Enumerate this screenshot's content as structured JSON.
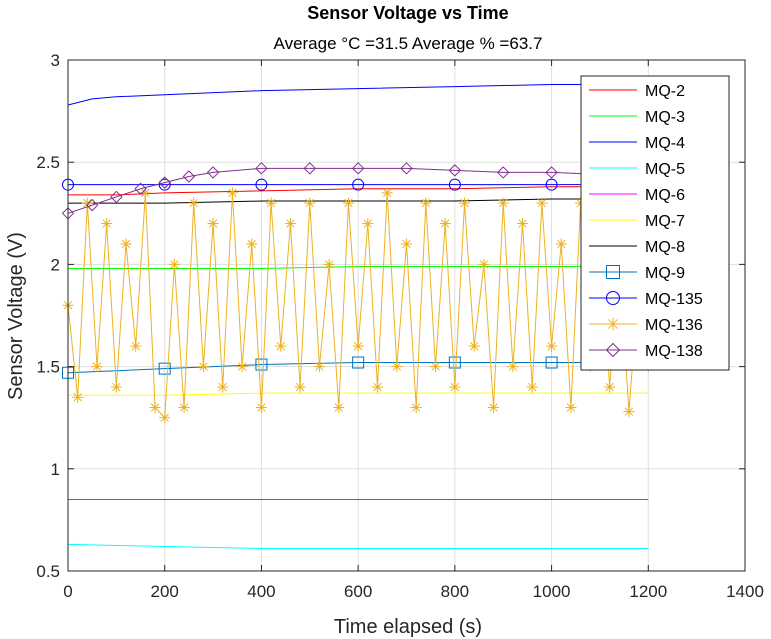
{
  "chart_data": {
    "type": "line",
    "title": "Sensor Voltage vs Time",
    "subtitle": "Average °C =31.5    Average % =63.7",
    "xlabel": "Time elapsed (s)",
    "ylabel": "Sensor Voltage (V)",
    "xlim": [
      0,
      1400
    ],
    "ylim": [
      0.5,
      3
    ],
    "xticks": [
      0,
      200,
      400,
      600,
      800,
      1000,
      1200,
      1400
    ],
    "xtick_labels": [
      "0",
      "200",
      "400",
      "600",
      "800",
      "1000",
      "1200",
      "1400"
    ],
    "yticks": [
      0.5,
      1,
      1.5,
      2,
      2.5,
      3
    ],
    "ytick_labels": [
      "0.5",
      "1",
      "1.5",
      "2",
      "2.5",
      "3"
    ],
    "grid": true,
    "legend_position": "top-right",
    "x_range": [
      0,
      1200
    ],
    "series": [
      {
        "name": "MQ-2",
        "color": "#ff0000",
        "marker": "none",
        "values": [
          [
            0,
            2.34
          ],
          [
            100,
            2.34
          ],
          [
            200,
            2.35
          ],
          [
            400,
            2.36
          ],
          [
            600,
            2.37
          ],
          [
            800,
            2.37
          ],
          [
            1000,
            2.38
          ],
          [
            1200,
            2.38
          ]
        ]
      },
      {
        "name": "MQ-3",
        "color": "#00ff00",
        "marker": "none",
        "values": [
          [
            0,
            1.98
          ],
          [
            200,
            1.98
          ],
          [
            400,
            1.98
          ],
          [
            600,
            1.99
          ],
          [
            800,
            1.99
          ],
          [
            1000,
            1.99
          ],
          [
            1200,
            1.99
          ]
        ]
      },
      {
        "name": "MQ-4",
        "color": "#0000ff",
        "marker": "none",
        "values": [
          [
            0,
            2.78
          ],
          [
            50,
            2.81
          ],
          [
            100,
            2.82
          ],
          [
            200,
            2.83
          ],
          [
            400,
            2.85
          ],
          [
            600,
            2.86
          ],
          [
            800,
            2.87
          ],
          [
            1000,
            2.88
          ],
          [
            1200,
            2.88
          ]
        ]
      },
      {
        "name": "MQ-5",
        "color": "#00ffff",
        "marker": "none",
        "values": [
          [
            0,
            0.63
          ],
          [
            200,
            0.62
          ],
          [
            400,
            0.61
          ],
          [
            600,
            0.61
          ],
          [
            800,
            0.61
          ],
          [
            1000,
            0.61
          ],
          [
            1200,
            0.61
          ]
        ]
      },
      {
        "name": "MQ-6",
        "color": "#ff00ff",
        "marker": "none",
        "values": [
          [
            0,
            0.85
          ],
          [
            200,
            0.85
          ],
          [
            400,
            0.85
          ],
          [
            600,
            0.85
          ],
          [
            800,
            0.85
          ],
          [
            1000,
            0.85
          ],
          [
            1200,
            0.85
          ]
        ]
      },
      {
        "name": "MQ-7",
        "color": "#ffff00",
        "marker": "none",
        "values": [
          [
            0,
            1.36
          ],
          [
            200,
            1.36
          ],
          [
            400,
            1.37
          ],
          [
            600,
            1.37
          ],
          [
            800,
            1.37
          ],
          [
            1000,
            1.37
          ],
          [
            1200,
            1.37
          ]
        ]
      },
      {
        "name": "MQ-8",
        "color": "#000000",
        "marker": "none",
        "values": [
          [
            0,
            2.3
          ],
          [
            200,
            2.3
          ],
          [
            400,
            2.31
          ],
          [
            600,
            2.31
          ],
          [
            800,
            2.31
          ],
          [
            1000,
            2.32
          ],
          [
            1200,
            2.32
          ]
        ]
      },
      {
        "name": "MQ-9",
        "color": "#0072bd",
        "marker": "square",
        "values": [
          [
            0,
            1.47
          ],
          [
            200,
            1.49
          ],
          [
            400,
            1.51
          ],
          [
            600,
            1.52
          ],
          [
            800,
            1.52
          ],
          [
            1000,
            1.52
          ],
          [
            1200,
            1.52
          ]
        ]
      },
      {
        "name": "MQ-135",
        "color": "#0000ff",
        "marker": "circle",
        "values": [
          [
            0,
            2.39
          ],
          [
            200,
            2.39
          ],
          [
            400,
            2.39
          ],
          [
            600,
            2.39
          ],
          [
            800,
            2.39
          ],
          [
            1000,
            2.39
          ],
          [
            1200,
            2.39
          ]
        ]
      },
      {
        "name": "MQ-136",
        "color": "#edb120",
        "marker": "star",
        "values": [
          [
            0,
            1.8
          ],
          [
            20,
            1.35
          ],
          [
            40,
            2.3
          ],
          [
            60,
            1.5
          ],
          [
            80,
            2.2
          ],
          [
            100,
            1.4
          ],
          [
            120,
            2.1
          ],
          [
            140,
            1.6
          ],
          [
            160,
            2.35
          ],
          [
            180,
            1.3
          ],
          [
            200,
            1.25
          ],
          [
            220,
            2.0
          ],
          [
            240,
            1.3
          ],
          [
            260,
            2.3
          ],
          [
            280,
            1.5
          ],
          [
            300,
            2.2
          ],
          [
            320,
            1.4
          ],
          [
            340,
            2.35
          ],
          [
            360,
            1.5
          ],
          [
            380,
            2.1
          ],
          [
            400,
            1.3
          ],
          [
            420,
            2.3
          ],
          [
            440,
            1.6
          ],
          [
            460,
            2.2
          ],
          [
            480,
            1.4
          ],
          [
            500,
            2.3
          ],
          [
            520,
            1.5
          ],
          [
            540,
            2.0
          ],
          [
            560,
            1.3
          ],
          [
            580,
            2.3
          ],
          [
            600,
            1.6
          ],
          [
            620,
            2.2
          ],
          [
            640,
            1.4
          ],
          [
            660,
            2.35
          ],
          [
            680,
            1.5
          ],
          [
            700,
            2.1
          ],
          [
            720,
            1.3
          ],
          [
            740,
            2.3
          ],
          [
            760,
            1.5
          ],
          [
            780,
            2.2
          ],
          [
            800,
            1.4
          ],
          [
            820,
            2.3
          ],
          [
            840,
            1.6
          ],
          [
            860,
            2.0
          ],
          [
            880,
            1.3
          ],
          [
            900,
            2.3
          ],
          [
            920,
            1.5
          ],
          [
            940,
            2.2
          ],
          [
            960,
            1.4
          ],
          [
            980,
            2.3
          ],
          [
            1000,
            1.6
          ],
          [
            1020,
            2.1
          ],
          [
            1040,
            1.3
          ],
          [
            1060,
            2.3
          ],
          [
            1080,
            1.5
          ],
          [
            1100,
            2.2
          ],
          [
            1120,
            1.4
          ],
          [
            1140,
            2.0
          ],
          [
            1160,
            1.28
          ],
          [
            1180,
            1.9
          ],
          [
            1200,
            1.5
          ]
        ]
      },
      {
        "name": "MQ-138",
        "color": "#7e2f8e",
        "marker": "diamond",
        "values": [
          [
            0,
            2.25
          ],
          [
            50,
            2.29
          ],
          [
            100,
            2.33
          ],
          [
            150,
            2.37
          ],
          [
            200,
            2.4
          ],
          [
            250,
            2.43
          ],
          [
            300,
            2.45
          ],
          [
            400,
            2.47
          ],
          [
            500,
            2.47
          ],
          [
            600,
            2.47
          ],
          [
            700,
            2.47
          ],
          [
            800,
            2.46
          ],
          [
            900,
            2.45
          ],
          [
            1000,
            2.45
          ],
          [
            1100,
            2.44
          ],
          [
            1200,
            2.44
          ]
        ]
      }
    ]
  }
}
